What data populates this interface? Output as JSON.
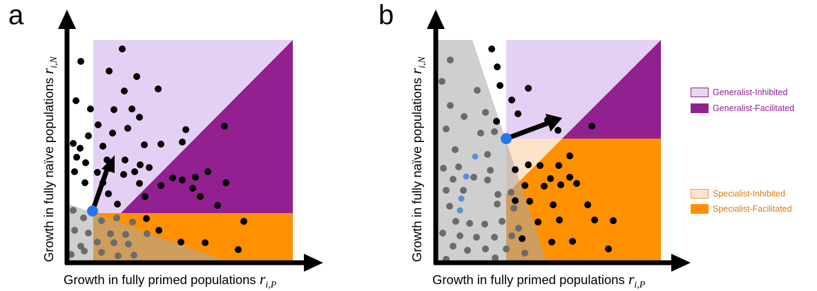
{
  "panels": [
    {
      "letter": "a",
      "xlabel_text": "Growth in fully primed populations ",
      "xlabel_var": "r",
      "xlabel_sub": "i,P",
      "ylabel_text": "Growth in fully naïve populations ",
      "ylabel_var": "r",
      "ylabel_sub": "i,N"
    },
    {
      "letter": "b",
      "xlabel_text": "Growth in fully primed populations ",
      "xlabel_var": "r",
      "xlabel_sub": "i,P",
      "ylabel_text": "Growth in fully naïve populations ",
      "ylabel_var": "r",
      "ylabel_sub": "i,N"
    }
  ],
  "legend": [
    {
      "label": "Generalist-Inhibited",
      "fill": "#e8d6f3",
      "border": "#8e2090",
      "text_color": "#8e2090"
    },
    {
      "label": "Generalist-Facilitated",
      "fill": "#932090",
      "border": "#932090",
      "text_color": "#8e2090"
    },
    {
      "label": "Specialist-Inhibited",
      "fill": "#fde3cc",
      "border": "#f39c40",
      "text_color": "#e07a10"
    },
    {
      "label": "Specialist-Facilitated",
      "fill": "#ff9000",
      "border": "#ff9000",
      "text_color": "#e07a10"
    }
  ],
  "colors": {
    "generalist_inhibited": "#e5d0f5",
    "generalist_facilitated": "#932090",
    "specialist_inhibited": "#fde3cc",
    "specialist_facilitated": "#ff9000",
    "grey_region": "#a8a8a8",
    "dot_black": "#000000",
    "dot_grey": "#6b6b6b",
    "dot_blue_small": "#5b8fd6",
    "dot_blue_large": "#2277ee"
  }
}
